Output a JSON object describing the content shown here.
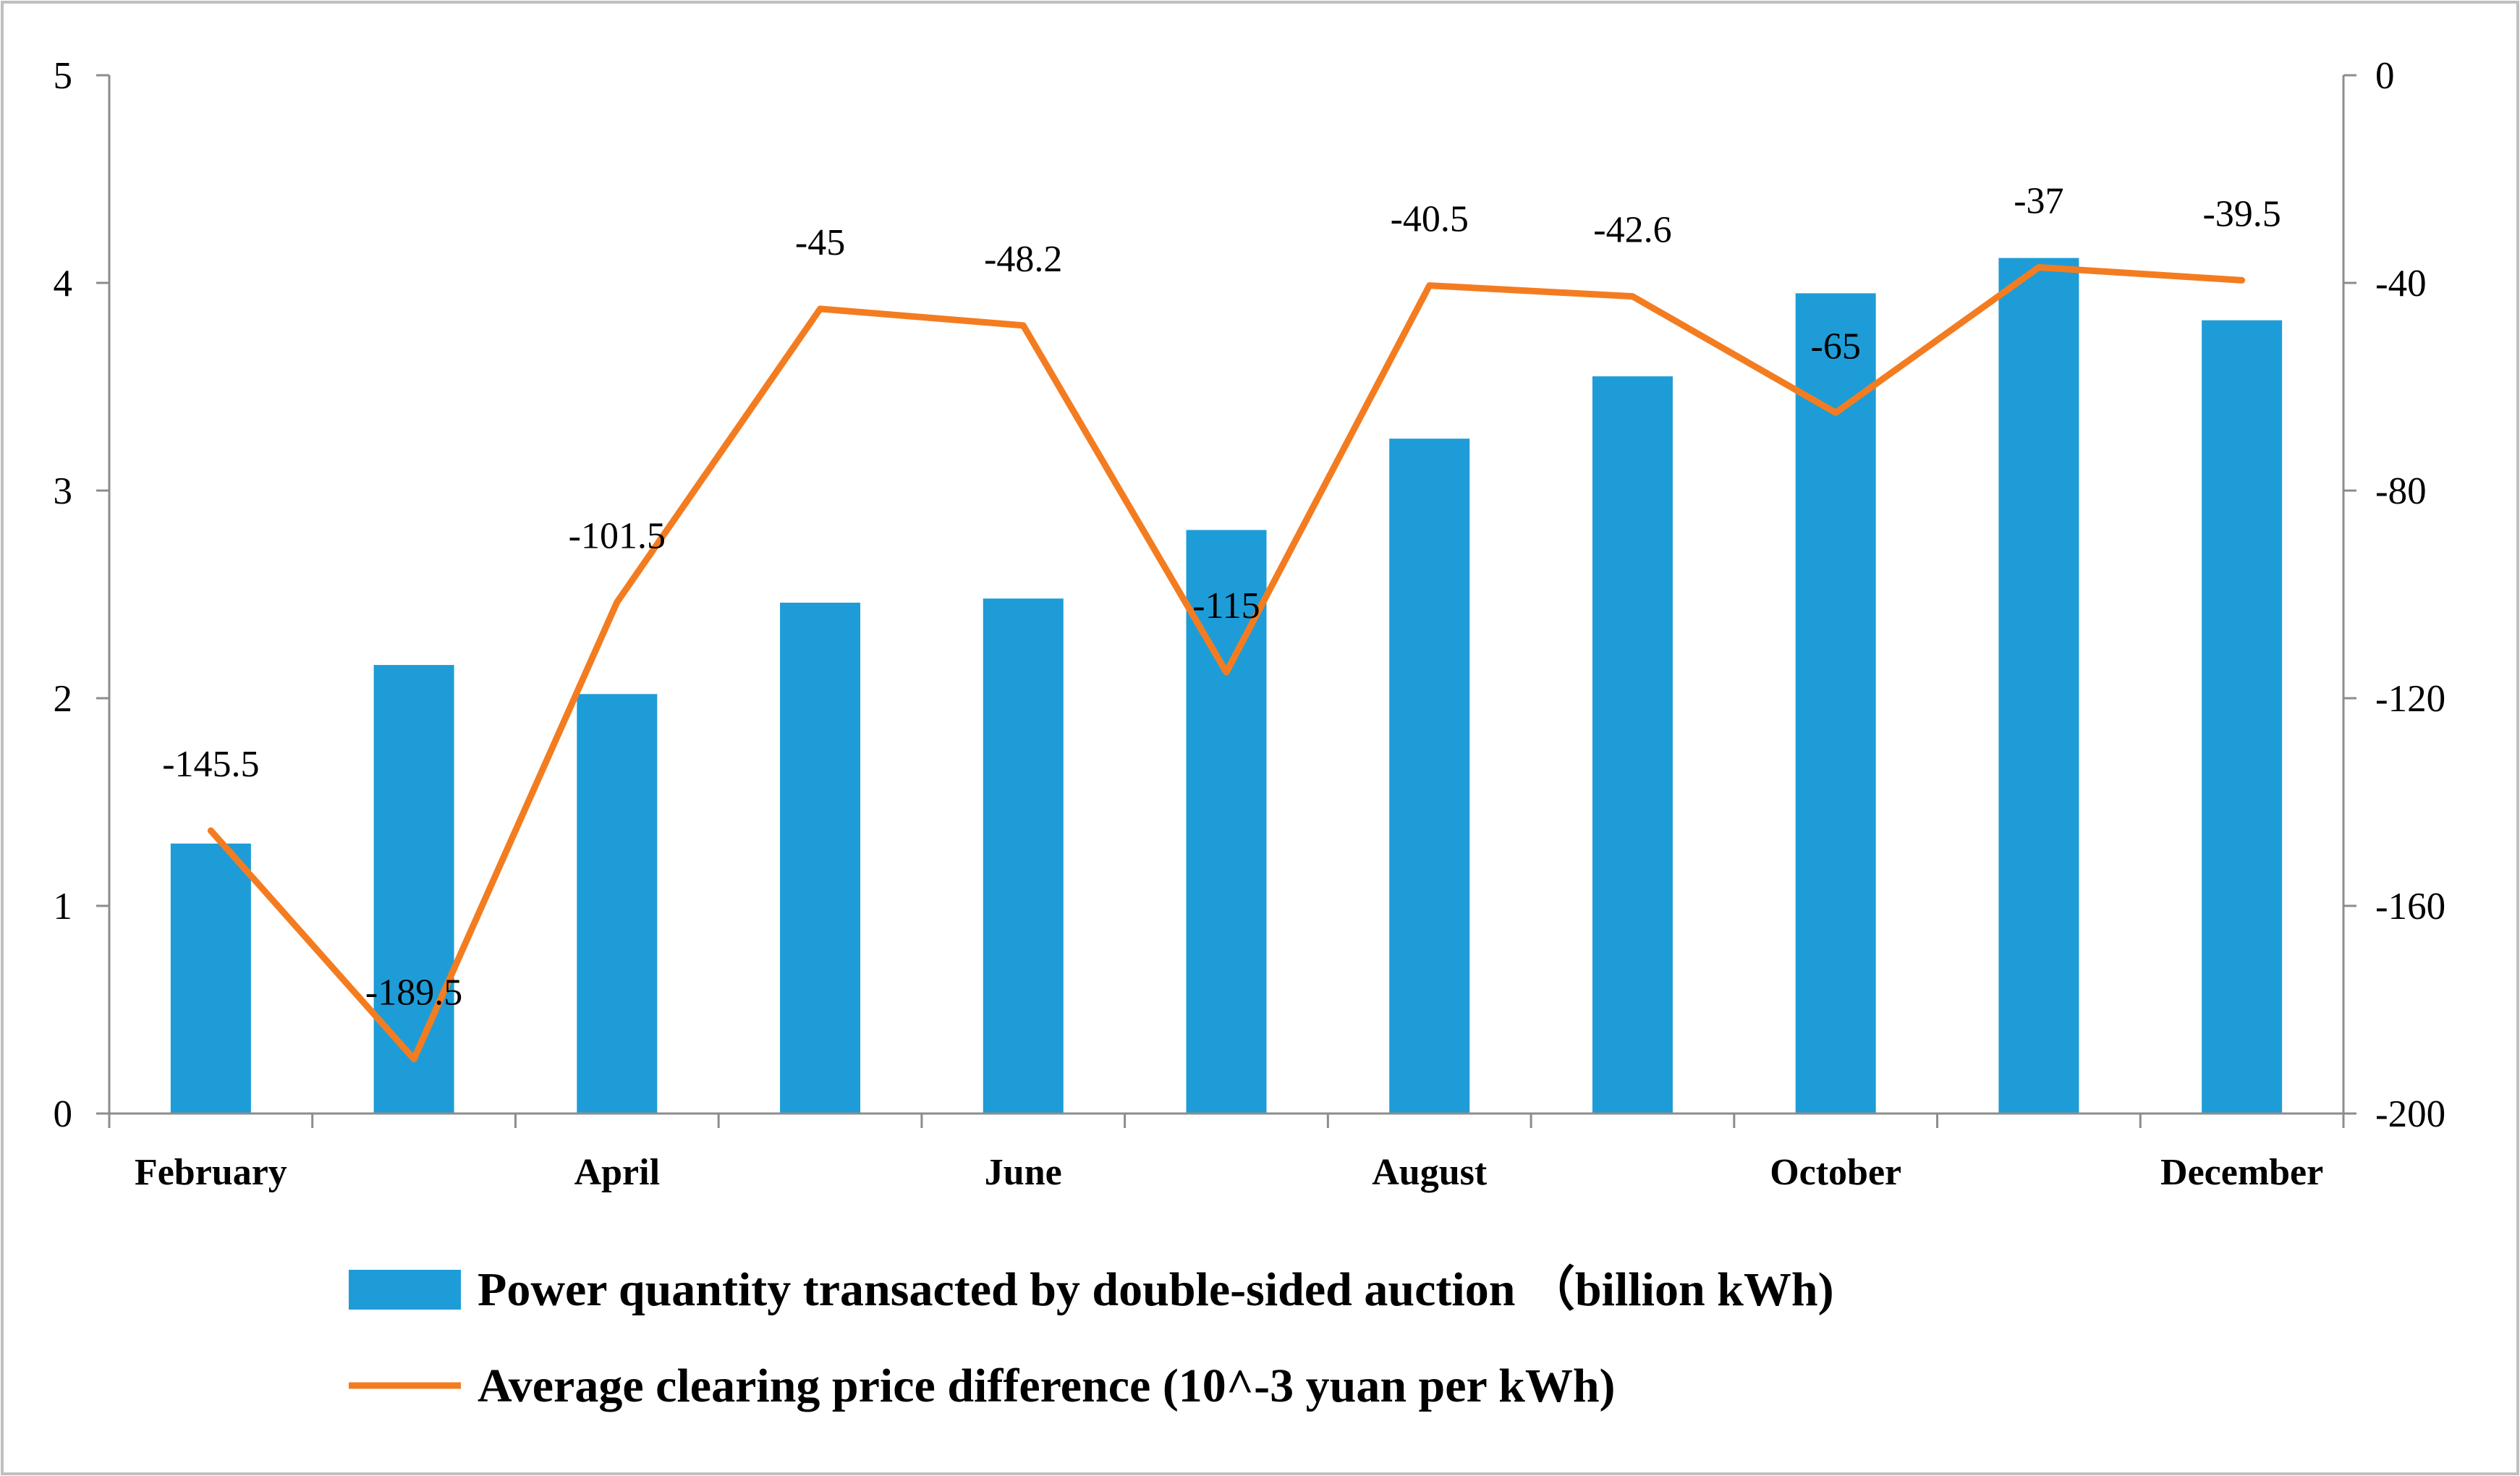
{
  "chart_data": {
    "type": "bar",
    "categories": [
      "February",
      "",
      "April",
      "",
      "June",
      "",
      "August",
      "",
      "October",
      "",
      "December"
    ],
    "series": [
      {
        "name": "Power quantity transacted by double-sided auction （billion kWh)",
        "type": "bar",
        "axis": "left",
        "values": [
          1.3,
          2.16,
          2.02,
          2.46,
          2.48,
          2.81,
          3.25,
          3.55,
          3.95,
          4.12,
          3.82
        ],
        "color": "#1E9CD7"
      },
      {
        "name": "Average clearing price difference (10^-3 yuan per kWh)",
        "type": "line",
        "axis": "right",
        "values": [
          -145.5,
          -189.5,
          -101.5,
          -45,
          -48.2,
          -115,
          -40.5,
          -42.6,
          -65,
          -37,
          -39.5
        ],
        "color": "#F47C20",
        "data_labels": true
      }
    ],
    "y_left": {
      "ticks": [
        0,
        1,
        2,
        3,
        4,
        5
      ],
      "ylim": [
        0,
        5
      ]
    },
    "y_right": {
      "ticks": [
        0,
        -40,
        -80,
        -120,
        -160,
        -200
      ],
      "ylim": [
        -200,
        0
      ]
    },
    "grid": false,
    "legend": "bottom",
    "axis_color": "#8C8C8C",
    "border_color": "#BFBFBF"
  }
}
